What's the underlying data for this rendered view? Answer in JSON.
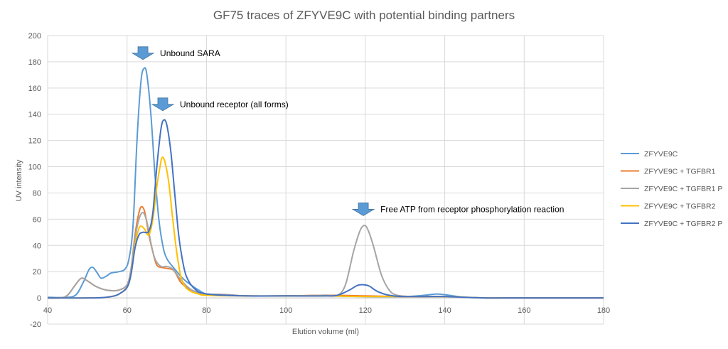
{
  "chart_data": {
    "type": "line",
    "title": "GF75 traces of ZFYVE9C with potential binding partners",
    "xlabel": "Elution volume (ml)",
    "ylabel": "UV intensity",
    "xlim": [
      40,
      180
    ],
    "ylim": [
      -20,
      200
    ],
    "x_ticks": [
      40,
      60,
      80,
      100,
      120,
      140,
      160,
      180
    ],
    "y_ticks": [
      -20,
      0,
      20,
      40,
      60,
      80,
      100,
      120,
      140,
      160,
      180,
      200
    ],
    "grid": true,
    "legend_position": "right",
    "series": [
      {
        "name": "ZFYVE9C",
        "color": "#5b9bd5",
        "points": [
          [
            40,
            0.5
          ],
          [
            44,
            0.3
          ],
          [
            47,
            2
          ],
          [
            49,
            12
          ],
          [
            50.5,
            22
          ],
          [
            51.5,
            23
          ],
          [
            52.5,
            19
          ],
          [
            53.5,
            15
          ],
          [
            55,
            17
          ],
          [
            56,
            19
          ],
          [
            58,
            20
          ],
          [
            59.5,
            22
          ],
          [
            60.5,
            30
          ],
          [
            61.5,
            55
          ],
          [
            62.5,
            120
          ],
          [
            63.5,
            165
          ],
          [
            64.3,
            175
          ],
          [
            65,
            170
          ],
          [
            66,
            140
          ],
          [
            67,
            95
          ],
          [
            68,
            60
          ],
          [
            69,
            40
          ],
          [
            70,
            30
          ],
          [
            72,
            22
          ],
          [
            74,
            15
          ],
          [
            76,
            10
          ],
          [
            78,
            6
          ],
          [
            80,
            3
          ],
          [
            85,
            2
          ],
          [
            90,
            1.5
          ],
          [
            100,
            1.5
          ],
          [
            110,
            1.5
          ],
          [
            120,
            1
          ],
          [
            130,
            1
          ],
          [
            135,
            2
          ],
          [
            138,
            3
          ],
          [
            141,
            2
          ],
          [
            145,
            0.5
          ],
          [
            150,
            0
          ],
          [
            160,
            0
          ],
          [
            180,
            0
          ]
        ]
      },
      {
        "name": "ZFYVE9C + TGFBR1",
        "color": "#ed7d31",
        "points": [
          [
            40,
            0
          ],
          [
            43,
            0
          ],
          [
            45,
            2
          ],
          [
            47,
            10
          ],
          [
            48.5,
            15
          ],
          [
            50,
            13
          ],
          [
            52,
            9
          ],
          [
            54,
            6.5
          ],
          [
            56,
            5.5
          ],
          [
            58,
            6
          ],
          [
            60,
            10
          ],
          [
            61,
            22
          ],
          [
            62,
            48
          ],
          [
            63,
            65
          ],
          [
            63.7,
            69.5
          ],
          [
            64.5,
            65
          ],
          [
            65.5,
            48
          ],
          [
            66.5,
            35
          ],
          [
            67.5,
            25
          ],
          [
            69,
            23
          ],
          [
            71,
            22
          ],
          [
            72,
            20
          ],
          [
            73.5,
            12
          ],
          [
            75,
            8
          ],
          [
            77,
            5
          ],
          [
            80,
            3
          ],
          [
            85,
            2.5
          ],
          [
            90,
            1.5
          ],
          [
            100,
            1.5
          ],
          [
            110,
            2
          ],
          [
            120,
            1.5
          ],
          [
            130,
            1
          ],
          [
            140,
            1
          ],
          [
            145,
            0.5
          ],
          [
            150,
            0
          ],
          [
            160,
            0
          ],
          [
            180,
            0
          ]
        ]
      },
      {
        "name": "ZFYVE9C + TGFBR1 P",
        "color": "#a5a5a5",
        "points": [
          [
            40,
            0
          ],
          [
            43,
            0
          ],
          [
            45,
            2
          ],
          [
            47,
            10
          ],
          [
            48.5,
            15
          ],
          [
            50,
            13
          ],
          [
            52,
            9
          ],
          [
            54,
            6.5
          ],
          [
            56,
            5.5
          ],
          [
            58,
            6
          ],
          [
            60,
            10
          ],
          [
            61,
            22
          ],
          [
            62,
            45
          ],
          [
            63,
            60
          ],
          [
            64,
            65
          ],
          [
            65,
            58
          ],
          [
            66,
            42
          ],
          [
            67,
            30
          ],
          [
            68.5,
            24
          ],
          [
            70,
            24
          ],
          [
            71.5,
            22
          ],
          [
            73,
            16
          ],
          [
            75,
            9
          ],
          [
            77,
            5
          ],
          [
            80,
            3
          ],
          [
            85,
            2.5
          ],
          [
            90,
            1.5
          ],
          [
            100,
            1.5
          ],
          [
            110,
            2
          ],
          [
            113,
            2
          ],
          [
            115,
            10
          ],
          [
            117,
            35
          ],
          [
            118.5,
            50
          ],
          [
            119.5,
            55
          ],
          [
            120.5,
            53
          ],
          [
            122,
            40
          ],
          [
            124,
            18
          ],
          [
            126,
            6
          ],
          [
            128,
            2
          ],
          [
            132,
            1
          ],
          [
            140,
            1
          ],
          [
            145,
            0.5
          ],
          [
            150,
            0
          ],
          [
            160,
            0
          ],
          [
            180,
            0
          ]
        ]
      },
      {
        "name": "ZFYVE9C + TGFBR2",
        "color": "#ffc000",
        "points": [
          [
            40,
            0
          ],
          [
            52,
            0
          ],
          [
            56,
            1
          ],
          [
            58,
            3
          ],
          [
            60,
            8
          ],
          [
            61,
            18
          ],
          [
            62,
            40
          ],
          [
            63,
            53
          ],
          [
            63.7,
            54.5
          ],
          [
            64.5,
            52
          ],
          [
            65.5,
            48
          ],
          [
            66.5,
            60
          ],
          [
            67.5,
            85
          ],
          [
            68.3,
            100
          ],
          [
            68.8,
            107
          ],
          [
            69.5,
            104
          ],
          [
            70.5,
            88
          ],
          [
            71.5,
            60
          ],
          [
            72.5,
            35
          ],
          [
            73.5,
            17
          ],
          [
            74.5,
            9
          ],
          [
            76,
            5
          ],
          [
            78,
            3
          ],
          [
            80,
            2
          ],
          [
            90,
            1.5
          ],
          [
            100,
            1.5
          ],
          [
            110,
            1.5
          ],
          [
            120,
            1
          ],
          [
            140,
            1
          ],
          [
            150,
            0
          ],
          [
            160,
            0
          ],
          [
            180,
            0
          ]
        ]
      },
      {
        "name": "ZFYVE9C + TGFBR2 P",
        "color": "#4472c4",
        "points": [
          [
            40,
            0
          ],
          [
            52,
            0
          ],
          [
            56,
            1
          ],
          [
            58,
            3
          ],
          [
            60,
            8
          ],
          [
            61,
            18
          ],
          [
            62,
            38
          ],
          [
            63,
            48
          ],
          [
            64,
            50
          ],
          [
            65.5,
            51
          ],
          [
            66.5,
            65
          ],
          [
            67.5,
            100
          ],
          [
            68.5,
            128
          ],
          [
            69.2,
            135.5
          ],
          [
            70,
            132
          ],
          [
            71,
            112
          ],
          [
            72,
            80
          ],
          [
            73,
            48
          ],
          [
            74,
            28
          ],
          [
            75,
            16
          ],
          [
            77,
            7
          ],
          [
            80,
            3
          ],
          [
            90,
            1.5
          ],
          [
            100,
            1.5
          ],
          [
            110,
            1.5
          ],
          [
            113,
            2
          ],
          [
            116,
            6
          ],
          [
            118,
            9.5
          ],
          [
            119.5,
            10
          ],
          [
            121,
            9
          ],
          [
            123,
            5
          ],
          [
            126,
            2
          ],
          [
            130,
            1
          ],
          [
            140,
            1
          ],
          [
            150,
            0
          ],
          [
            160,
            0
          ],
          [
            180,
            0
          ]
        ]
      }
    ],
    "annotations": [
      {
        "text": "Unbound SARA",
        "x": 64,
        "y": 186,
        "arrow_color": "#5b9bd5"
      },
      {
        "text": "Unbound receptor (all forms)",
        "x": 69,
        "y": 147,
        "arrow_color": "#5b9bd5"
      },
      {
        "text": "Free ATP from receptor phosphorylation reaction",
        "x": 119.5,
        "y": 67,
        "arrow_color": "#5b9bd5"
      }
    ]
  }
}
